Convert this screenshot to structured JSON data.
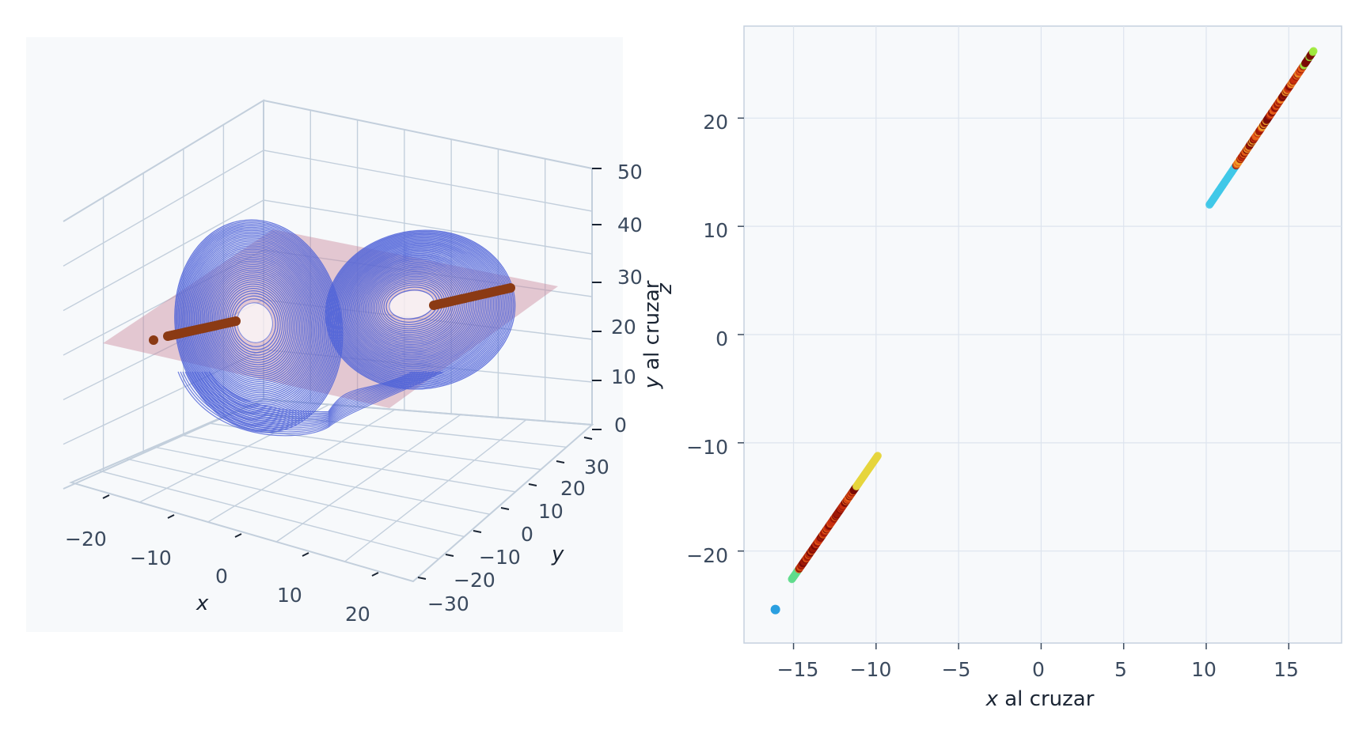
{
  "chart_data": [
    {
      "type": "line3d",
      "xlabel": "x",
      "ylabel": "y",
      "zlabel": "z",
      "xlim": [
        -25,
        25
      ],
      "ylim": [
        -35,
        35
      ],
      "zlim": [
        0,
        50
      ],
      "xticks": [
        "−20",
        "−10",
        "0",
        "10",
        "20"
      ],
      "yticks": [
        "−30",
        "−20",
        "−10",
        "0",
        "10",
        "20",
        "30"
      ],
      "zticks": [
        "0",
        "10",
        "20",
        "30",
        "40",
        "50"
      ],
      "plane_z": 27,
      "colors": {
        "trajectory": "#4f63d8",
        "plane": "#c98a9e",
        "crossings": "#8b3a14"
      }
    },
    {
      "type": "scatter",
      "xlabel_var": "x",
      "xlabel_rest": " al cruzar",
      "ylabel_var": "y",
      "ylabel_rest": " al cruzar",
      "xlim": [
        -18,
        18.2
      ],
      "ylim": [
        -28.5,
        28.5
      ],
      "xticks": [
        "−15",
        "−10",
        "−5",
        "0",
        "5",
        "10",
        "15"
      ],
      "yticks": [
        "−20",
        "−10",
        "0",
        "10",
        "20"
      ],
      "xtick_values": [
        -15,
        -10,
        -5,
        0,
        5,
        10,
        15
      ],
      "ytick_values": [
        -20,
        -10,
        0,
        10,
        20
      ],
      "grid": true,
      "clusters": [
        {
          "from": [
            -15.1,
            -22.6
          ],
          "to": [
            -9.9,
            -11.2
          ],
          "points": 150
        },
        {
          "from": [
            10.2,
            12.0
          ],
          "to": [
            16.5,
            26.2
          ],
          "points": 150
        }
      ],
      "outliers": [
        [
          -16.1,
          -25.4
        ]
      ],
      "colors": [
        "#2a9fe0",
        "#40c8e8",
        "#5fdc8c",
        "#a0ea3e",
        "#e6d53c",
        "#f2a32c",
        "#e8621a",
        "#c83010",
        "#9e1a08",
        "#7a0a06"
      ]
    }
  ]
}
